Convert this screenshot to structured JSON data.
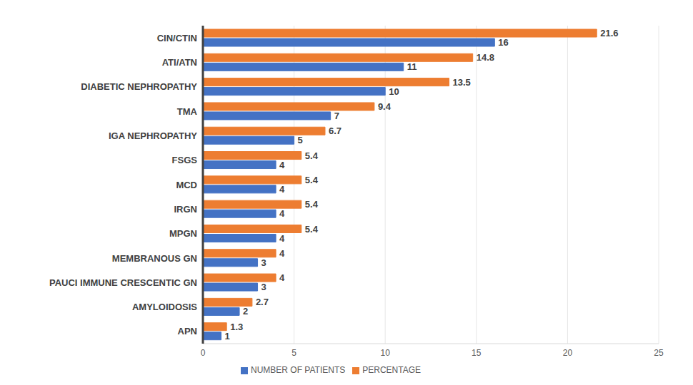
{
  "chart_data": {
    "type": "bar",
    "orientation": "horizontal",
    "categories": [
      "CIN/CTIN",
      "ATI/ATN",
      "DIABETIC NEPHROPATHY",
      "TMA",
      "IGA NEPHROPATHY",
      "FSGS",
      "MCD",
      "IRGN",
      "MPGN",
      "MEMBRANOUS GN",
      "PAUCI IMMUNE CRESCENTIC GN",
      "AMYLOIDOSIS",
      "APN"
    ],
    "series": [
      {
        "name": "PERCENTAGE",
        "color": "#ed7d31",
        "values": [
          21.6,
          14.8,
          13.5,
          9.4,
          6.7,
          5.4,
          5.4,
          5.4,
          5.4,
          4,
          4,
          2.7,
          1.3
        ]
      },
      {
        "name": "NUMBER OF PATIENTS",
        "color": "#4472c4",
        "values": [
          16,
          11,
          10,
          7,
          5,
          4,
          4,
          4,
          4,
          3,
          3,
          2,
          1
        ]
      }
    ],
    "xlim": [
      0,
      25
    ],
    "xticks": [
      0,
      5,
      10,
      15,
      20,
      25
    ],
    "grid": true,
    "legend": "bottom",
    "data_labels": true
  }
}
